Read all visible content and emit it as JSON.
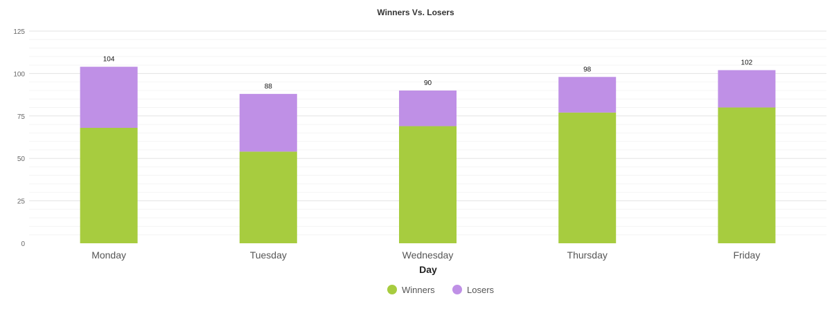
{
  "chart_data": {
    "type": "bar",
    "stacked": true,
    "title": "Winners Vs. Losers",
    "xlabel": "Day",
    "ylabel": "",
    "ylim": [
      0,
      125
    ],
    "yticks": [
      0,
      25,
      50,
      75,
      100,
      125
    ],
    "categories": [
      "Monday",
      "Tuesday",
      "Wednesday",
      "Thursday",
      "Friday"
    ],
    "series": [
      {
        "name": "Winners",
        "color": "#a7cc3f",
        "values": [
          68,
          54,
          69,
          77,
          80
        ]
      },
      {
        "name": "Losers",
        "color": "#bf90e6",
        "values": [
          36,
          34,
          21,
          21,
          22
        ]
      }
    ],
    "totals": [
      104,
      88,
      90,
      98,
      102
    ],
    "grid": true,
    "legend_position": "bottom-center"
  }
}
